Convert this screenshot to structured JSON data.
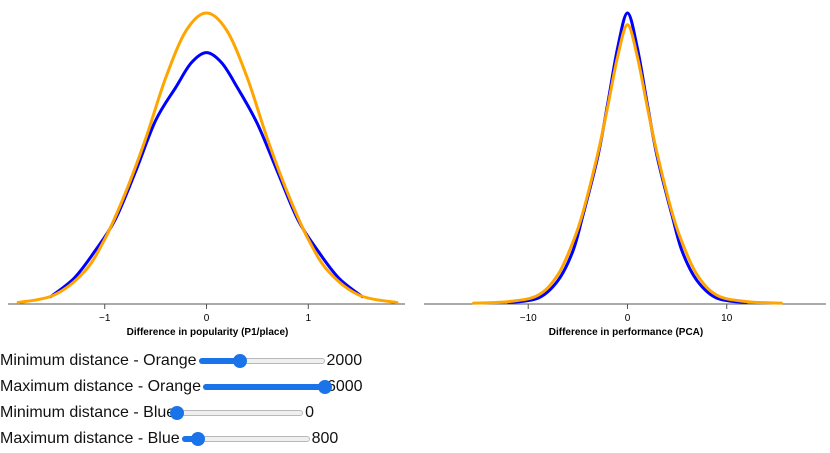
{
  "chart_data": [
    {
      "type": "line",
      "xlabel": "Difference in popularity (P1/place)",
      "ylabel": "",
      "xlim": [
        -1.95,
        1.95
      ],
      "ylim": [
        0,
        1.0
      ],
      "xticks": [
        -1,
        0,
        1
      ],
      "tick_labels": [
        "−1",
        "0",
        "1"
      ],
      "grid": false,
      "series": [
        {
          "color": "#0000ff",
          "x": [
            -1.53,
            -1.3,
            -1.1,
            -0.9,
            -0.7,
            -0.5,
            -0.3,
            -0.15,
            0.0,
            0.15,
            0.3,
            0.5,
            0.7,
            0.9,
            1.1,
            1.3,
            1.53
          ],
          "y": [
            0.025,
            0.088,
            0.178,
            0.285,
            0.448,
            0.624,
            0.738,
            0.82,
            0.855,
            0.82,
            0.738,
            0.613,
            0.448,
            0.285,
            0.178,
            0.088,
            0.025
          ]
        },
        {
          "color": "#ffa500",
          "x": [
            -1.85,
            -1.5,
            -1.2,
            -1.0,
            -0.8,
            -0.6,
            -0.4,
            -0.2,
            0.0,
            0.2,
            0.4,
            0.6,
            0.8,
            1.0,
            1.2,
            1.5,
            1.87
          ],
          "y": [
            0.005,
            0.03,
            0.11,
            0.22,
            0.375,
            0.56,
            0.77,
            0.93,
            0.99,
            0.93,
            0.77,
            0.56,
            0.375,
            0.22,
            0.11,
            0.03,
            0.005
          ]
        }
      ]
    },
    {
      "type": "line",
      "xlabel": "Difference in performance (PCA)",
      "ylabel": "",
      "xlim": [
        -20.5,
        20.0
      ],
      "ylim": [
        0,
        1.0
      ],
      "xticks": [
        -10,
        0,
        10
      ],
      "tick_labels": [
        "−10",
        "0",
        "10"
      ],
      "grid": false,
      "series": [
        {
          "color": "#0000ff",
          "x": [
            -12.0,
            -9.0,
            -7.0,
            -5.5,
            -4.5,
            -3.0,
            -2.0,
            -1.0,
            0.0,
            1.0,
            2.0,
            3.0,
            4.5,
            5.5,
            7.0,
            9.0,
            12.0
          ],
          "y": [
            0.005,
            0.02,
            0.08,
            0.18,
            0.3,
            0.5,
            0.68,
            0.87,
            0.99,
            0.87,
            0.68,
            0.5,
            0.3,
            0.18,
            0.08,
            0.02,
            0.005
          ]
        },
        {
          "color": "#ffa500",
          "x": [
            -15.5,
            -12.0,
            -9.0,
            -7.0,
            -5.5,
            -4.5,
            -3.0,
            -2.0,
            -1.0,
            0.0,
            1.0,
            2.0,
            3.0,
            4.5,
            5.5,
            7.0,
            9.0,
            12.0,
            15.5
          ],
          "y": [
            0.003,
            0.008,
            0.03,
            0.1,
            0.21,
            0.31,
            0.51,
            0.67,
            0.84,
            0.95,
            0.84,
            0.67,
            0.51,
            0.31,
            0.21,
            0.1,
            0.03,
            0.008,
            0.003
          ]
        }
      ]
    }
  ],
  "controls": [
    {
      "label": "Minimum distance - Orange",
      "value": "2000",
      "level": 0.333
    },
    {
      "label": "Maximum distance - Orange",
      "value": "6000",
      "level": 1.0
    },
    {
      "label": "Minimum distance - Blue",
      "value": "0",
      "level": 0.0
    },
    {
      "label": "Maximum distance - Blue",
      "value": "800",
      "level": 0.13
    }
  ],
  "colors": {
    "slider_accent": "#1a73e8",
    "orange_series": "#ffa500",
    "blue_series": "#0000ff",
    "axis": "#555555"
  }
}
